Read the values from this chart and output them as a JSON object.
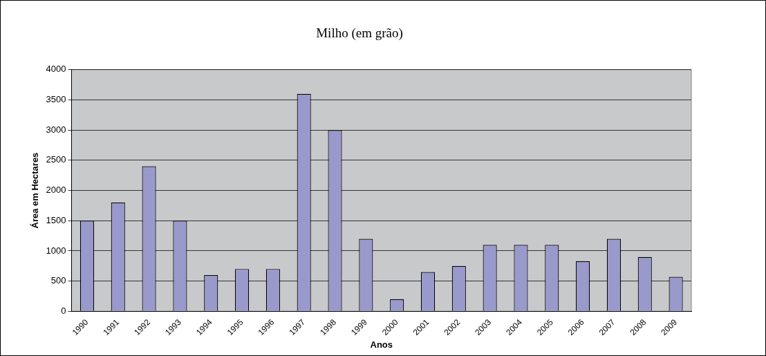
{
  "chart_data": {
    "type": "bar",
    "title": "Milho (em grão)",
    "xlabel": "Anos",
    "ylabel": "Área em Hectares",
    "categories": [
      "1990",
      "1991",
      "1992",
      "1993",
      "1994",
      "1995",
      "1996",
      "1997",
      "1998",
      "1999",
      "2000",
      "2001",
      "2002",
      "2003",
      "2004",
      "2005",
      "2006",
      "2007",
      "2008",
      "2009"
    ],
    "values": [
      1500,
      1800,
      2400,
      1500,
      600,
      700,
      700,
      3600,
      3000,
      1200,
      200,
      650,
      750,
      1100,
      1100,
      1100,
      830,
      1200,
      900,
      570
    ],
    "color": "#9999cc",
    "ylim": [
      0,
      4000
    ],
    "yticks": [
      0,
      500,
      1000,
      1500,
      2000,
      2500,
      3000,
      3500,
      4000
    ],
    "grid": "y",
    "legend": false
  }
}
